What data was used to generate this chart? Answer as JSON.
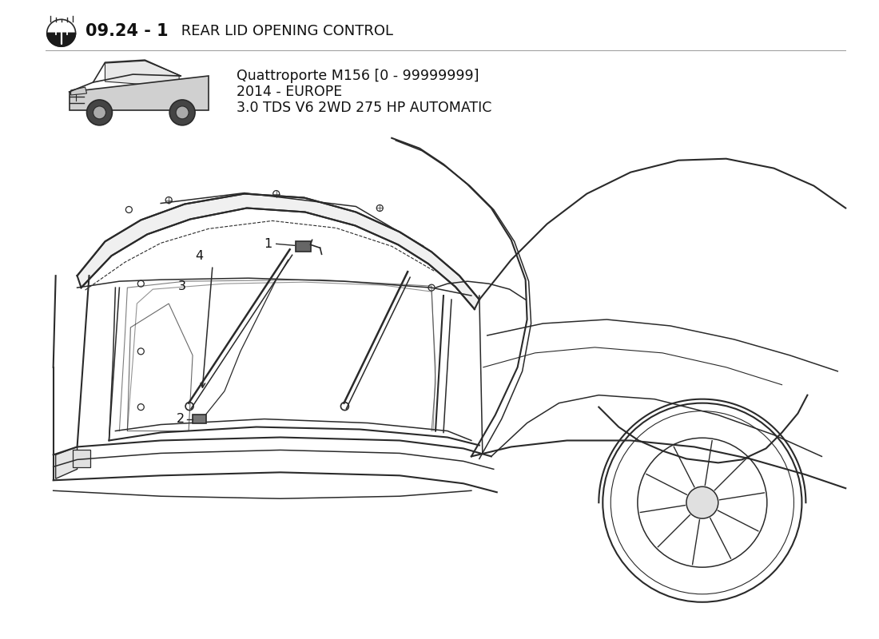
{
  "bg_color": "#ffffff",
  "title_bold": "09.24 - 1",
  "title_normal": " REAR LID OPENING CONTROL",
  "sub1": "Quattroporte M156 [0 - 99999999]",
  "sub2": "2014 - EUROPE",
  "sub3": "3.0 TDS V6 2WD 275 HP AUTOMATIC",
  "line_color": "#2a2a2a",
  "label_color": "#1a1a1a",
  "figsize": [
    11.0,
    8.0
  ],
  "dpi": 100
}
